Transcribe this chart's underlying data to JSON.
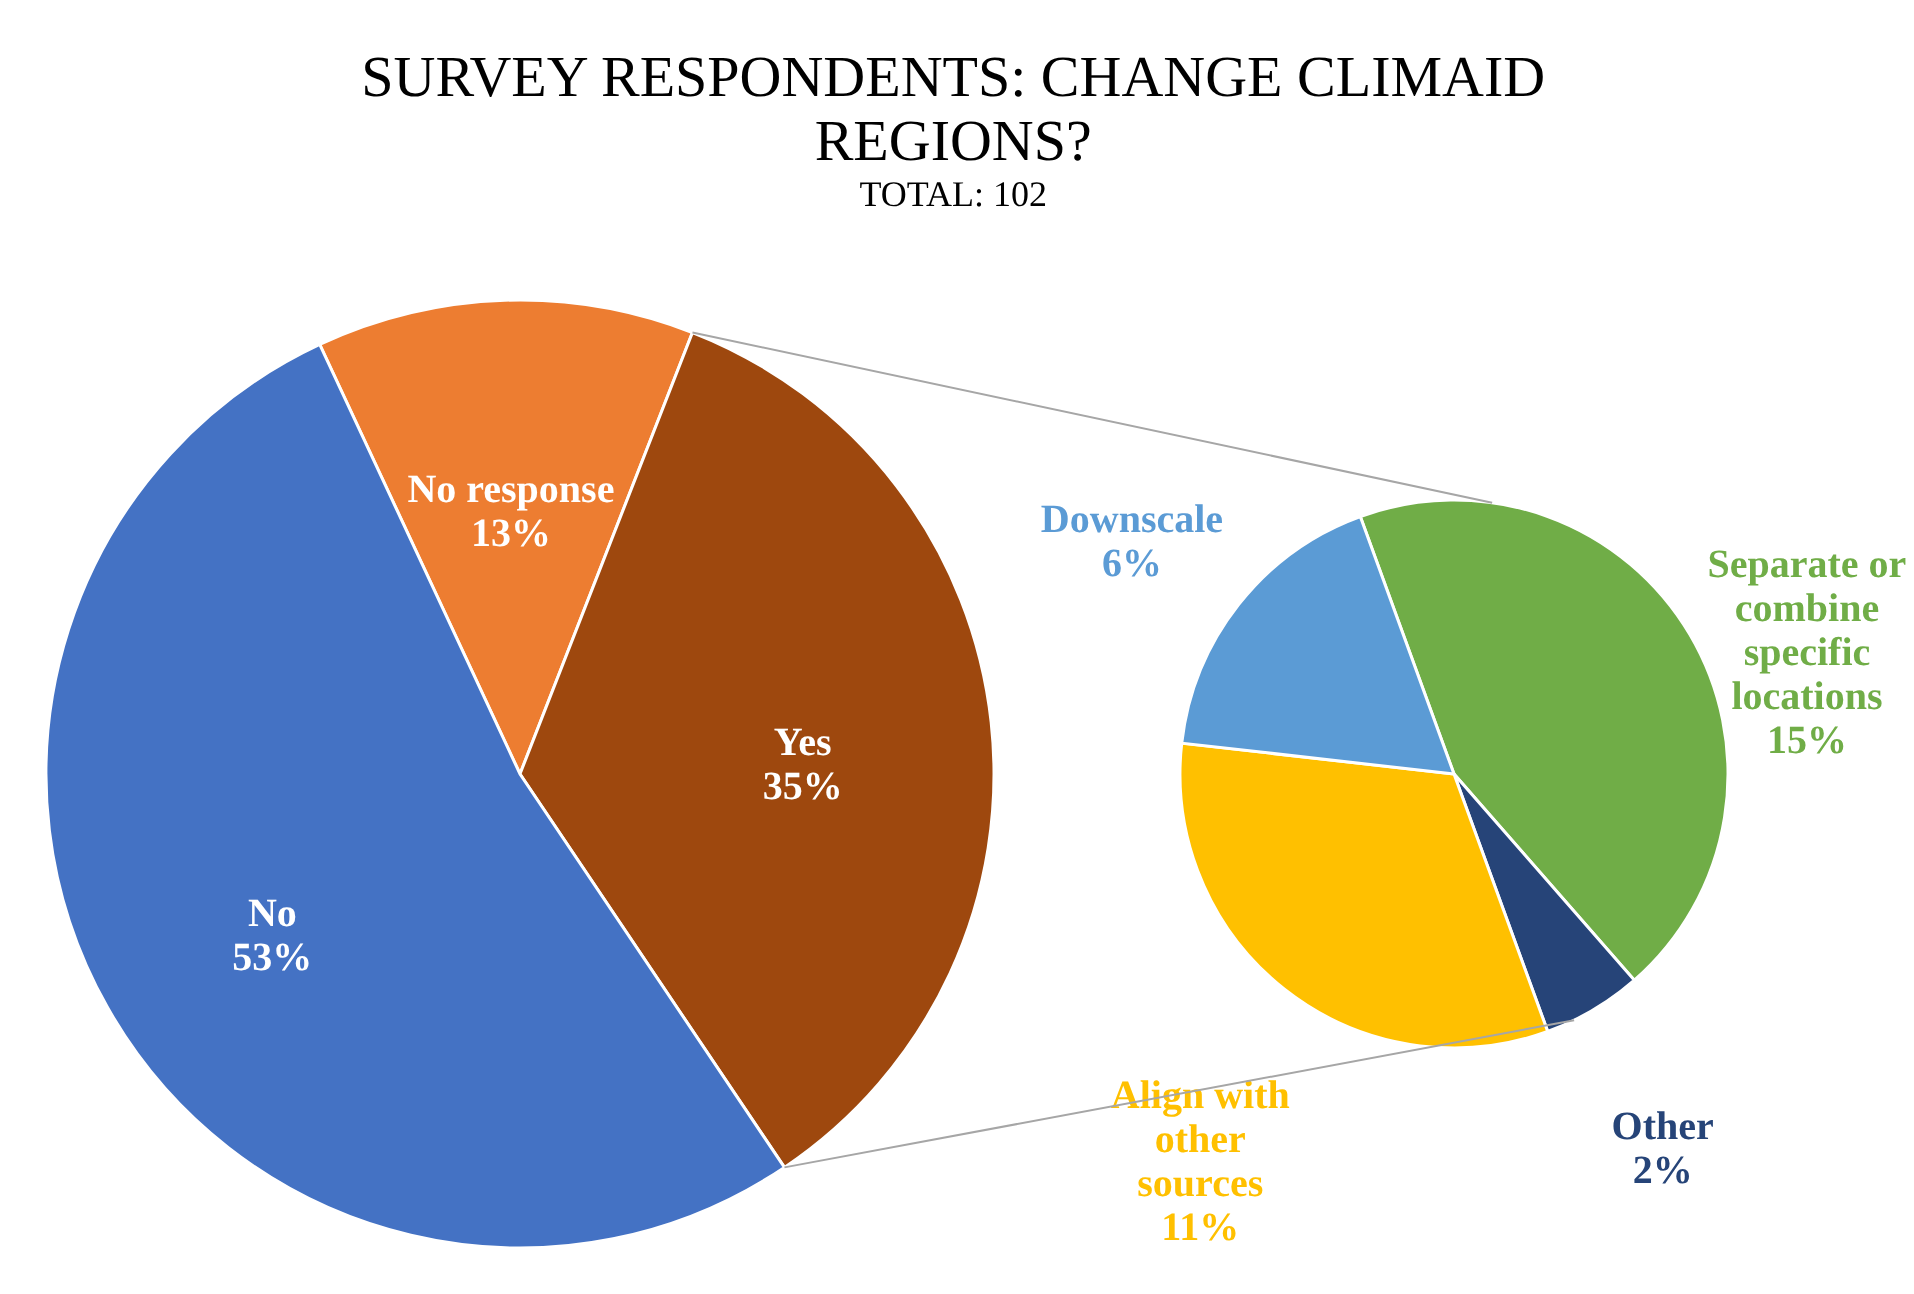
{
  "chart_data": [
    {
      "type": "pie",
      "title": "SURVEY RESPONDENTS: CHANGE CLIMAID REGIONS?",
      "subtitle": "TOTAL: 102",
      "categories": [
        "No response",
        "Yes",
        "No"
      ],
      "values": [
        13,
        35,
        53
      ],
      "colors": [
        "#ed7d31",
        "#9e480e",
        "#4472c4"
      ],
      "value_labels": [
        "13%",
        "35%",
        "53%"
      ]
    },
    {
      "type": "pie",
      "categories": [
        "Separate or combine specific locations",
        "Other",
        "Align with other sources",
        "Downscale"
      ],
      "values": [
        15,
        2,
        11,
        6
      ],
      "colors": [
        "#70ad47",
        "#264478",
        "#ffc000",
        "#5b9bd5"
      ],
      "value_labels": [
        "15%",
        "2%",
        "11%",
        "6%"
      ]
    }
  ]
}
